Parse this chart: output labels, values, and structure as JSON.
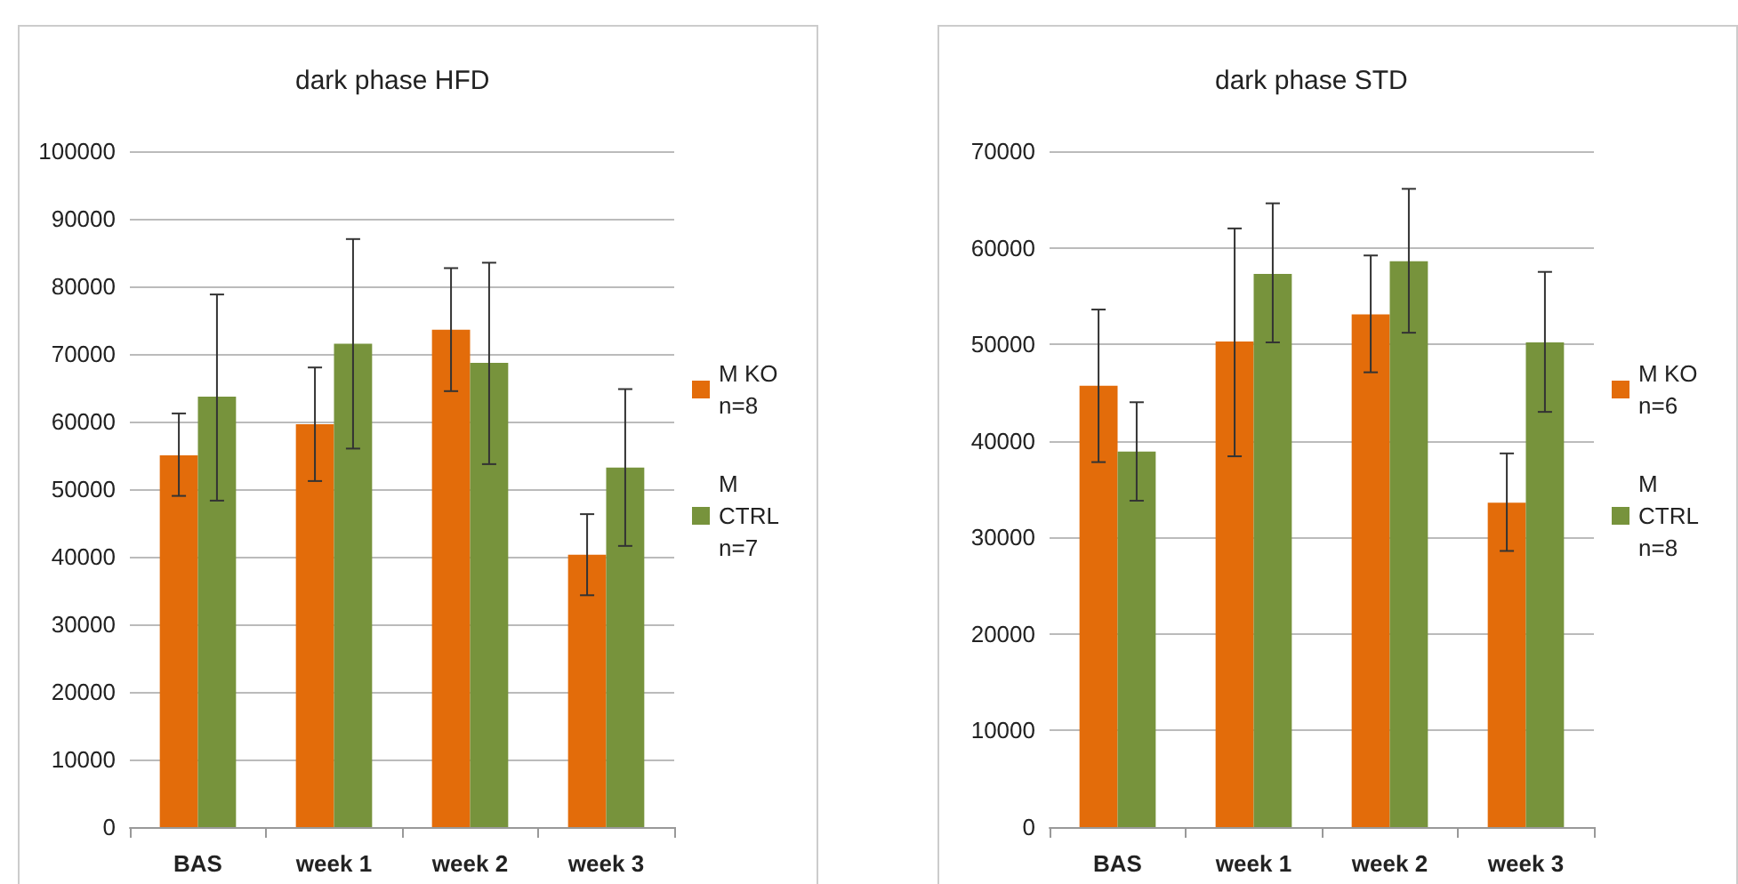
{
  "chart_data": [
    {
      "type": "bar",
      "title": "dark phase HFD",
      "categories": [
        "BAS",
        "week 1",
        "week 2",
        "week 3"
      ],
      "ylim": [
        0,
        100000
      ],
      "yticks": [
        0,
        10000,
        20000,
        30000,
        40000,
        50000,
        60000,
        70000,
        80000,
        90000,
        100000
      ],
      "grid": "y",
      "legend": "right",
      "series": [
        {
          "name": "M KO n=8",
          "color": "#e36c0a",
          "values": [
            55000,
            59600,
            73600,
            40300
          ],
          "errors": [
            [
              49000,
              61200
            ],
            [
              51200,
              68000
            ],
            [
              64500,
              82700
            ],
            [
              34300,
              46300
            ]
          ]
        },
        {
          "name": "M CTRL n=7",
          "color": "#77933c",
          "values": [
            63700,
            71500,
            68700,
            53200
          ],
          "errors": [
            [
              48300,
              78800
            ],
            [
              56000,
              87000
            ],
            [
              53700,
              83500
            ],
            [
              41600,
              64800
            ]
          ]
        }
      ]
    },
    {
      "type": "bar",
      "title": "dark phase STD",
      "categories": [
        "BAS",
        "week 1",
        "week 2",
        "week 3"
      ],
      "ylim": [
        0,
        70000
      ],
      "yticks": [
        0,
        10000,
        20000,
        30000,
        40000,
        50000,
        60000,
        70000
      ],
      "grid": "y",
      "legend": "right",
      "series": [
        {
          "name": "M KO n=6",
          "color": "#e36c0a",
          "values": [
            45700,
            50300,
            53100,
            33600
          ],
          "errors": [
            [
              37800,
              53600
            ],
            [
              38400,
              62000
            ],
            [
              47100,
              59200
            ],
            [
              28600,
              38700
            ]
          ]
        },
        {
          "name": "M CTRL n=8",
          "color": "#77933c",
          "values": [
            38900,
            57300,
            58600,
            50200
          ],
          "errors": [
            [
              33800,
              44000
            ],
            [
              50200,
              64600
            ],
            [
              51200,
              66100
            ],
            [
              43000,
              57500
            ]
          ]
        }
      ]
    }
  ]
}
